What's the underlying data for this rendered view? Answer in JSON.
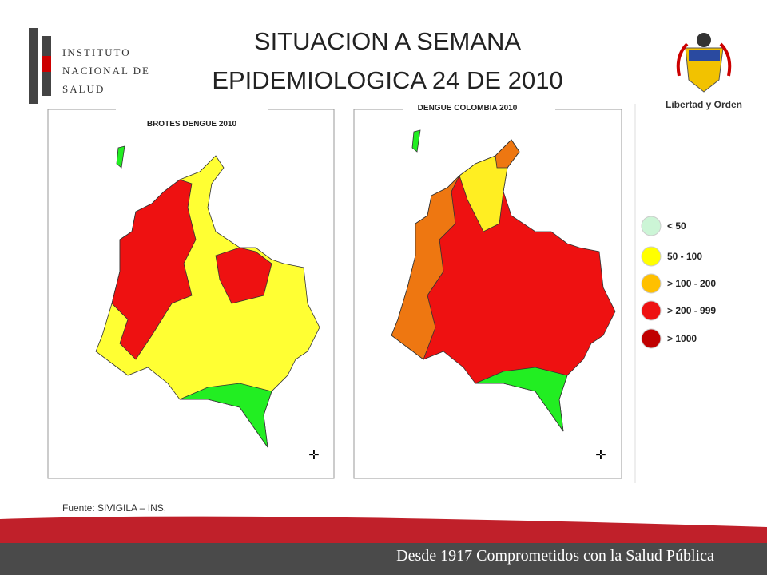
{
  "header": {
    "title_lines": [
      "SITUACION A SEMANA",
      "EPIDEMIOLOGICA 24 DE 2010"
    ],
    "logo_lines": [
      "INSTITUTO",
      "NACIONAL DE",
      "SALUD"
    ],
    "motto": "Libertad y Orden"
  },
  "maps": [
    {
      "title": "BROTES DENGUE 2010"
    },
    {
      "title": "DENGUE COLOMBIA 2010"
    }
  ],
  "legend": [
    {
      "label": "< 50",
      "color": "#ccf5d6"
    },
    {
      "label": "50 - 100",
      "color": "#ffff00"
    },
    {
      "label": "> 100 - 200",
      "color": "#ffc000"
    },
    {
      "label": "> 200 - 999",
      "color": "#ee1111"
    },
    {
      "label": "> 1000",
      "color": "#c00000"
    }
  ],
  "source": "Fuente: SIVIGILA – INS,",
  "footer": "Desde 1917 Comprometidos con la Salud Pública"
}
